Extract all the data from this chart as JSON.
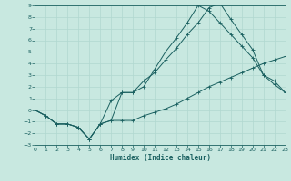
{
  "xlabel": "Humidex (Indice chaleur)",
  "background_color": "#c8e8e0",
  "grid_color": "#b0d8d0",
  "line_color": "#1a6060",
  "spine_color": "#1a6060",
  "xlim": [
    0,
    23
  ],
  "ylim": [
    -3,
    9
  ],
  "xticks": [
    0,
    1,
    2,
    3,
    4,
    5,
    6,
    7,
    8,
    9,
    10,
    11,
    12,
    13,
    14,
    15,
    16,
    17,
    18,
    19,
    20,
    21,
    22,
    23
  ],
  "yticks": [
    -3,
    -2,
    -1,
    0,
    1,
    2,
    3,
    4,
    5,
    6,
    7,
    8,
    9
  ],
  "line1_x": [
    0,
    1,
    2,
    3,
    4,
    5,
    6,
    7,
    8,
    9,
    10,
    11,
    12,
    13,
    14,
    15,
    16,
    17,
    18,
    19,
    20,
    21,
    22,
    23
  ],
  "line1_y": [
    0.0,
    -0.5,
    -1.2,
    -1.2,
    -1.5,
    -2.5,
    -1.2,
    -0.9,
    -0.9,
    -0.9,
    -0.5,
    -0.2,
    0.1,
    0.5,
    1.0,
    1.5,
    2.0,
    2.4,
    2.8,
    3.2,
    3.6,
    4.0,
    4.3,
    4.6
  ],
  "line2_x": [
    0,
    1,
    2,
    3,
    4,
    5,
    6,
    7,
    8,
    9,
    10,
    11,
    12,
    13,
    14,
    15,
    16,
    17,
    18,
    19,
    20,
    21,
    22,
    23
  ],
  "line2_y": [
    0.0,
    -0.5,
    -1.2,
    -1.2,
    -1.5,
    -2.5,
    -1.2,
    0.8,
    1.5,
    1.5,
    2.5,
    3.2,
    4.3,
    5.3,
    6.5,
    7.5,
    8.8,
    9.2,
    7.8,
    6.5,
    5.2,
    3.0,
    2.2,
    1.5
  ],
  "line3_x": [
    0,
    1,
    2,
    3,
    4,
    5,
    6,
    7,
    8,
    9,
    10,
    11,
    12,
    13,
    14,
    15,
    16,
    17,
    18,
    19,
    20,
    21,
    22,
    23
  ],
  "line3_y": [
    0.0,
    -0.5,
    -1.2,
    -1.2,
    -1.5,
    -2.5,
    -1.2,
    -0.9,
    1.5,
    1.5,
    2.0,
    3.5,
    5.0,
    6.2,
    7.5,
    9.0,
    8.5,
    7.5,
    6.5,
    5.5,
    4.5,
    3.0,
    2.5,
    1.5
  ]
}
